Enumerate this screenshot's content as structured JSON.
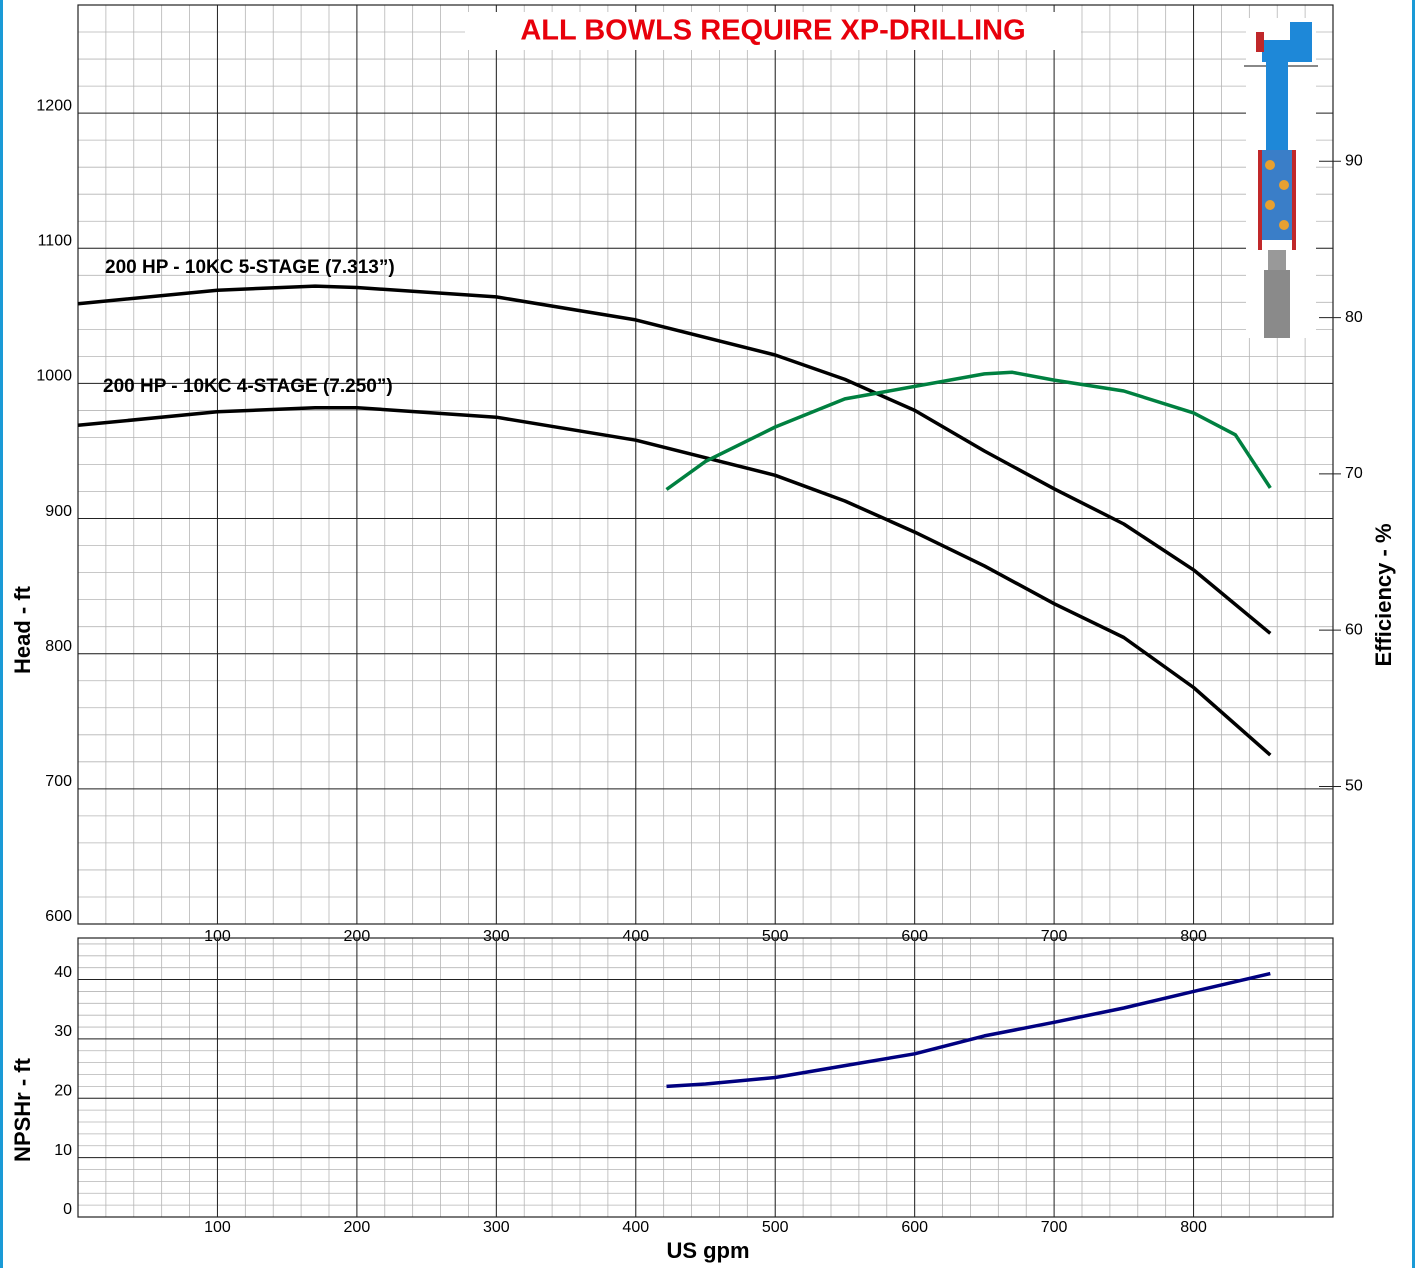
{
  "chart_data": [
    {
      "type": "line",
      "title": "ALL BOWLS REQUIRE XP-DRILLING",
      "ylabel": "Head - ft",
      "y2label": "Efficiency - %",
      "annotations": [
        "200 HP - 10KC 5-STAGE (7.313”)",
        "200 HP - 10KC 4-STAGE (7.250”)"
      ],
      "xlim": [
        0,
        900
      ],
      "xticks": [
        100,
        200,
        300,
        400,
        500,
        600,
        700,
        800
      ],
      "ylim": [
        600,
        1280
      ],
      "yticks": [
        600,
        700,
        800,
        900,
        1000,
        1100,
        1200
      ],
      "y2lim": [
        41.2,
        100
      ],
      "y2ticks": [
        50,
        60,
        70,
        80,
        90
      ],
      "grid": true,
      "minor_grid": {
        "x": 20,
        "y": 20
      },
      "series": [
        {
          "name": "200 HP - 10KC 5-STAGE (7.313”)",
          "color": "#000000",
          "x": [
            0,
            100,
            170,
            200,
            300,
            400,
            500,
            550,
            600,
            650,
            700,
            750,
            800,
            855
          ],
          "values": [
            1059,
            1069,
            1072,
            1071,
            1064,
            1047,
            1021,
            1003,
            980,
            950,
            922,
            896,
            862,
            815
          ]
        },
        {
          "name": "200 HP - 10KC 4-STAGE (7.250”)",
          "color": "#000000",
          "x": [
            0,
            100,
            170,
            200,
            300,
            400,
            500,
            550,
            600,
            650,
            700,
            750,
            800,
            855
          ],
          "values": [
            969,
            979,
            982,
            982,
            975,
            958,
            932,
            913,
            890,
            865,
            837,
            812,
            775,
            725
          ]
        },
        {
          "name": "Efficiency",
          "color": "#008040",
          "axis": "y2",
          "x": [
            422,
            450,
            500,
            550,
            600,
            650,
            670,
            700,
            750,
            800,
            830,
            855
          ],
          "values": [
            69,
            70.8,
            73,
            74.8,
            75.6,
            76.4,
            76.5,
            76.0,
            75.3,
            73.9,
            72.5,
            69.1
          ]
        }
      ]
    },
    {
      "type": "line",
      "ylabel": "NPSHr - ft",
      "xlabel": "US gpm",
      "xlim": [
        0,
        900
      ],
      "xticks": [
        100,
        200,
        300,
        400,
        500,
        600,
        700,
        800
      ],
      "ylim": [
        0,
        47
      ],
      "yticks": [
        0,
        10,
        20,
        30,
        40
      ],
      "grid": true,
      "minor_grid": {
        "x": 20,
        "y": 2
      },
      "series": [
        {
          "name": "NPSHr",
          "color": "#000080",
          "x": [
            422,
            450,
            500,
            550,
            600,
            650,
            700,
            750,
            800,
            855
          ],
          "values": [
            22,
            22.4,
            23.5,
            25.5,
            27.5,
            30.5,
            32.8,
            35.2,
            38,
            41
          ]
        }
      ]
    }
  ]
}
